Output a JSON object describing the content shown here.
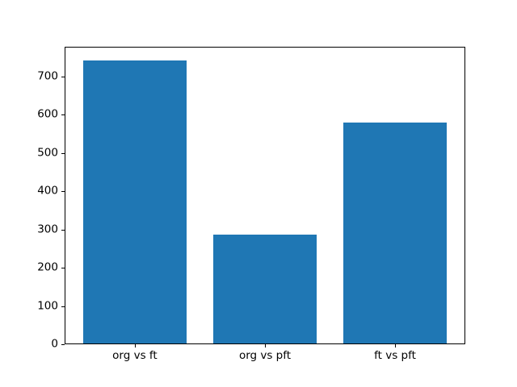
{
  "figure": {
    "background": "#ffffff",
    "spine_color": "#000000",
    "tick_color": "#000000",
    "text_color": "#000000"
  },
  "chart_data": {
    "type": "bar",
    "title": "",
    "xlabel": "",
    "ylabel": "",
    "categories": [
      "org vs ft",
      "org vs pft",
      "ft vs pft"
    ],
    "values": [
      740,
      284,
      578
    ],
    "bar_color": "#1f77b4",
    "ylim": [
      0,
      777
    ],
    "yticks": [
      0,
      100,
      200,
      300,
      400,
      500,
      600,
      700
    ],
    "xlim": [
      -0.54,
      2.54
    ],
    "bar_width_units": 0.8,
    "grid": false,
    "legend": null
  }
}
